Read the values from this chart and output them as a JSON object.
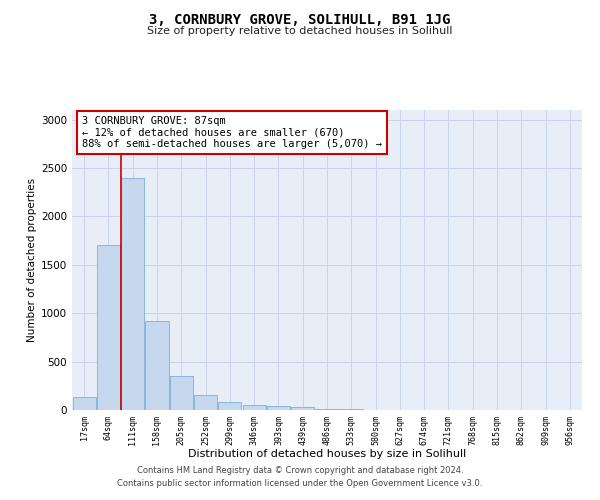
{
  "title": "3, CORNBURY GROVE, SOLIHULL, B91 1JG",
  "subtitle": "Size of property relative to detached houses in Solihull",
  "xlabel": "Distribution of detached houses by size in Solihull",
  "ylabel": "Number of detached properties",
  "bar_labels": [
    "17sqm",
    "64sqm",
    "111sqm",
    "158sqm",
    "205sqm",
    "252sqm",
    "299sqm",
    "346sqm",
    "393sqm",
    "439sqm",
    "486sqm",
    "533sqm",
    "580sqm",
    "627sqm",
    "674sqm",
    "721sqm",
    "768sqm",
    "815sqm",
    "862sqm",
    "909sqm",
    "956sqm"
  ],
  "bar_values": [
    130,
    1700,
    2400,
    920,
    350,
    160,
    80,
    55,
    40,
    30,
    15,
    10,
    5,
    3,
    2,
    1,
    1,
    0,
    0,
    0,
    0
  ],
  "bar_color": "#c5d8ee",
  "bar_edge_color": "#7fafd4",
  "grid_color": "#c8d4e8",
  "bg_color": "#e8eef8",
  "vline_x": 1.5,
  "vline_color": "#cc0000",
  "annotation_text": "3 CORNBURY GROVE: 87sqm\n← 12% of detached houses are smaller (670)\n88% of semi-detached houses are larger (5,070) →",
  "ylim": [
    0,
    3100
  ],
  "yticks": [
    0,
    500,
    1000,
    1500,
    2000,
    2500,
    3000
  ],
  "footer_line1": "Contains HM Land Registry data © Crown copyright and database right 2024.",
  "footer_line2": "Contains public sector information licensed under the Open Government Licence v3.0."
}
